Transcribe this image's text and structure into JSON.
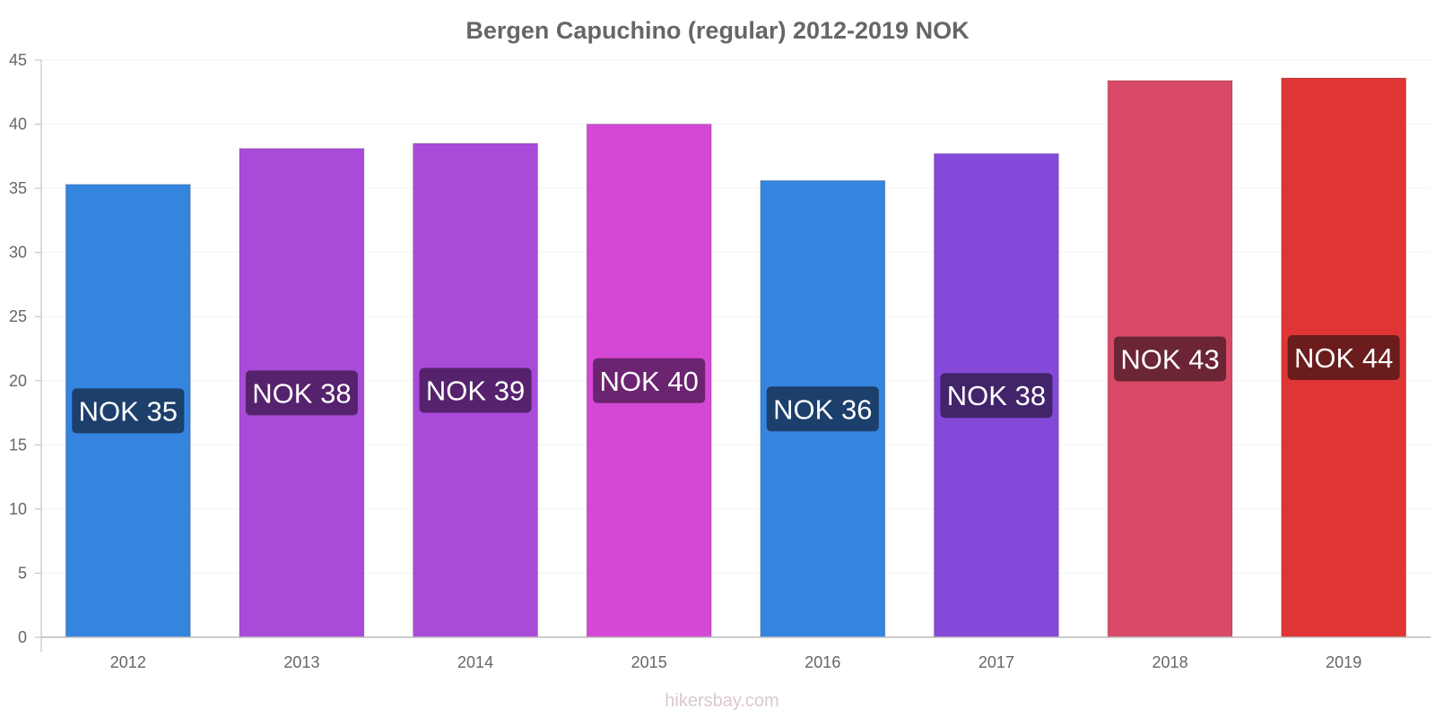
{
  "chart_data": {
    "type": "bar",
    "title": "Bergen Capuchino (regular) 2012-2019 NOK",
    "categories": [
      "2012",
      "2013",
      "2014",
      "2015",
      "2016",
      "2017",
      "2018",
      "2019"
    ],
    "values": [
      35.3,
      38.1,
      38.5,
      40.0,
      35.6,
      37.7,
      43.4,
      43.6
    ],
    "data_labels": [
      "NOK 35",
      "NOK 38",
      "NOK 39",
      "NOK 40",
      "NOK 36",
      "NOK 38",
      "NOK 43",
      "NOK 44"
    ],
    "bar_colors": [
      "#3585de",
      "#a94bd9",
      "#a94bd9",
      "#d548d6",
      "#3585de",
      "#8449d9",
      "#d94a68",
      "#e03535"
    ],
    "label_colors": [
      "#1c3f6b",
      "#56226d",
      "#56226d",
      "#6b2470",
      "#1c3f6b",
      "#42246b",
      "#6b2535",
      "#6b1c1c"
    ],
    "ylim": [
      0,
      45
    ],
    "yticks": [
      0,
      5,
      10,
      15,
      20,
      25,
      30,
      35,
      40,
      45
    ],
    "xlabel": "",
    "ylabel": "",
    "grid": true
  },
  "footer": {
    "credit": "hikersbay.com"
  }
}
